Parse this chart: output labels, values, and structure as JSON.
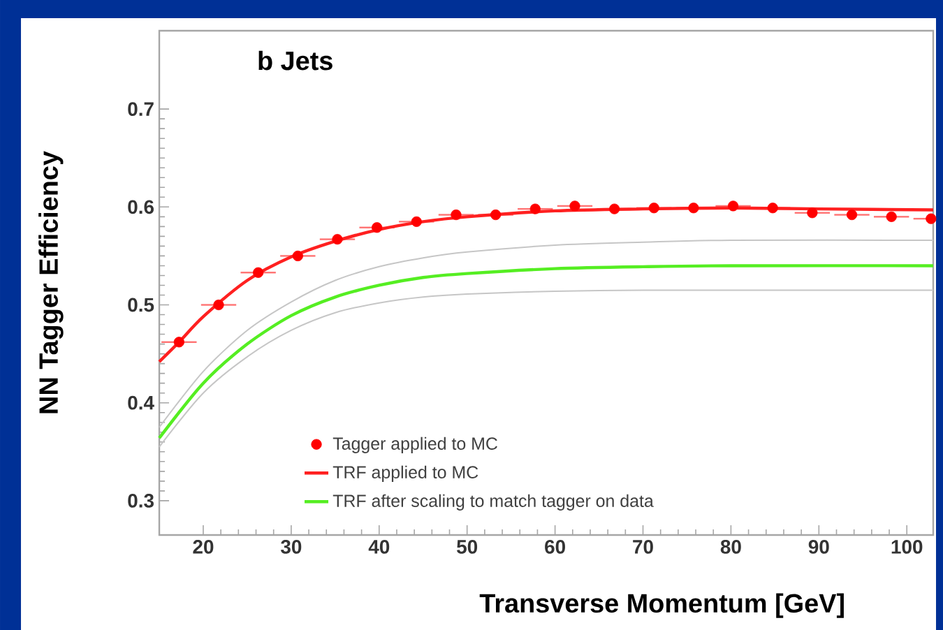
{
  "chart_data": {
    "type": "line",
    "title": "b Jets",
    "xlabel": "Transverse Momentum [GeV]",
    "ylabel": "NN Tagger Efficiency",
    "xlim": [
      15,
      103
    ],
    "ylim": [
      0.265,
      0.78
    ],
    "xticks": [
      20,
      30,
      40,
      50,
      60,
      70,
      80,
      90,
      100
    ],
    "yticks": [
      0.3,
      0.4,
      0.5,
      0.6,
      0.7
    ],
    "grid": false,
    "legend": "bottom",
    "series": [
      {
        "name": "Tagger applied to MC",
        "type": "scatter",
        "color": "#ff0000",
        "x": [
          17.25,
          21.75,
          26.25,
          30.75,
          35.25,
          39.75,
          44.25,
          48.75,
          53.25,
          57.75,
          62.25,
          66.75,
          71.25,
          75.75,
          80.25,
          84.75,
          89.25,
          93.75,
          98.25,
          102.75
        ],
        "values": [
          0.462,
          0.5,
          0.533,
          0.55,
          0.567,
          0.579,
          0.585,
          0.592,
          0.592,
          0.598,
          0.601,
          0.598,
          0.599,
          0.599,
          0.601,
          0.599,
          0.594,
          0.592,
          0.59,
          0.588
        ],
        "xerrors": [
          2,
          2,
          2,
          2,
          2,
          2,
          2,
          2,
          2,
          2,
          2,
          2,
          2,
          2,
          2,
          2,
          2,
          2,
          2,
          [
            100.75,
            103
          ]
        ]
      },
      {
        "name": "TRF applied to MC",
        "color": "#ff2020",
        "x": [
          15,
          17.25,
          20,
          25,
          30,
          35,
          40,
          45,
          50,
          60,
          70,
          80,
          90,
          103
        ],
        "values": [
          0.442,
          0.462,
          0.488,
          0.525,
          0.549,
          0.565,
          0.577,
          0.585,
          0.59,
          0.596,
          0.598,
          0.599,
          0.598,
          0.597
        ]
      },
      {
        "color": "#c6c6c6",
        "x": [
          15,
          20,
          25,
          30,
          35,
          40,
          45,
          50,
          60,
          70,
          80,
          103
        ],
        "values": [
          0.355,
          0.41,
          0.447,
          0.474,
          0.492,
          0.502,
          0.508,
          0.511,
          0.514,
          0.515,
          0.515,
          0.515
        ]
      },
      {
        "color": "#c6c6c6",
        "x": [
          15,
          20,
          25,
          30,
          35,
          40,
          45,
          50,
          60,
          70,
          80,
          103
        ],
        "values": [
          0.375,
          0.432,
          0.474,
          0.503,
          0.525,
          0.539,
          0.548,
          0.554,
          0.561,
          0.564,
          0.566,
          0.566
        ]
      },
      {
        "name": "TRF after scaling to match tagger on data",
        "color": "#55ee22",
        "x": [
          15,
          20,
          25,
          30,
          35,
          40,
          45,
          50,
          60,
          70,
          80,
          103
        ],
        "values": [
          0.364,
          0.42,
          0.46,
          0.489,
          0.508,
          0.52,
          0.528,
          0.532,
          0.537,
          0.539,
          0.54,
          0.54
        ]
      }
    ]
  }
}
